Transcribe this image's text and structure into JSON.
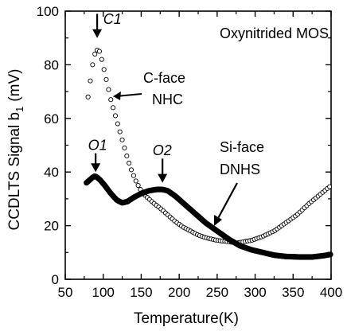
{
  "chart_data": {
    "type": "scatter",
    "title": "Oxynitrided MOS",
    "xlabel": "Temperature(K)",
    "ylabel": "CCDLTS Signal b",
    "ylabel_sub": "1",
    "ylabel_unit": "(mV)",
    "xlim": [
      50,
      400
    ],
    "ylim": [
      0,
      100
    ],
    "xticks": [
      50,
      100,
      150,
      200,
      250,
      300,
      350,
      400
    ],
    "yticks": [
      0,
      20,
      40,
      60,
      80,
      100
    ],
    "grid": false,
    "series": [
      {
        "name": "C-face NHC",
        "marker": "open-circle",
        "x_start": 80,
        "x_end": 400,
        "x_step": 3,
        "points": [
          [
            80,
            68
          ],
          [
            83,
            74
          ],
          [
            86,
            80
          ],
          [
            89,
            84
          ],
          [
            92,
            85.5
          ],
          [
            95,
            85
          ],
          [
            98,
            82
          ],
          [
            102,
            77
          ],
          [
            106,
            72
          ],
          [
            110,
            67
          ],
          [
            115,
            62
          ],
          [
            120,
            57
          ],
          [
            126,
            51
          ],
          [
            132,
            45
          ],
          [
            138,
            40
          ],
          [
            144,
            36
          ],
          [
            150,
            33
          ],
          [
            156,
            31
          ],
          [
            162,
            29.5
          ],
          [
            168,
            28
          ],
          [
            175,
            26.5
          ],
          [
            185,
            24
          ],
          [
            195,
            21.5
          ],
          [
            205,
            19.5
          ],
          [
            215,
            18
          ],
          [
            225,
            16.5
          ],
          [
            235,
            15.5
          ],
          [
            250,
            14.5
          ],
          [
            265,
            14
          ],
          [
            275,
            13.5
          ],
          [
            285,
            14
          ],
          [
            295,
            14.5
          ],
          [
            310,
            16
          ],
          [
            325,
            18
          ],
          [
            340,
            21
          ],
          [
            355,
            24
          ],
          [
            370,
            28
          ],
          [
            385,
            31.5
          ],
          [
            400,
            35
          ]
        ],
        "label_name": "C-face",
        "label_sub": "NHC"
      },
      {
        "name": "Si-face DNHS",
        "marker": "filled-circle",
        "x_start": 78,
        "x_end": 400,
        "x_step": 1.5,
        "points": [
          [
            78,
            36
          ],
          [
            82,
            37
          ],
          [
            86,
            38
          ],
          [
            89,
            38.5
          ],
          [
            92,
            38
          ],
          [
            96,
            37
          ],
          [
            102,
            35
          ],
          [
            110,
            32
          ],
          [
            118,
            29.5
          ],
          [
            125,
            28.5
          ],
          [
            132,
            29
          ],
          [
            140,
            30.5
          ],
          [
            150,
            32
          ],
          [
            160,
            33
          ],
          [
            170,
            33.5
          ],
          [
            178,
            33.5
          ],
          [
            185,
            33
          ],
          [
            195,
            31
          ],
          [
            205,
            28.5
          ],
          [
            215,
            26
          ],
          [
            225,
            23.5
          ],
          [
            235,
            21
          ],
          [
            250,
            18
          ],
          [
            265,
            15
          ],
          [
            280,
            12.5
          ],
          [
            295,
            11
          ],
          [
            310,
            10
          ],
          [
            325,
            9
          ],
          [
            340,
            8.5
          ],
          [
            360,
            8.3
          ],
          [
            375,
            8.3
          ],
          [
            390,
            8.8
          ],
          [
            400,
            9.3
          ]
        ],
        "label_name": "Si-face",
        "label_sub": "DNHS"
      }
    ],
    "annotations": [
      {
        "text": "C1",
        "italic": true,
        "arrow_x": 92,
        "arrow_from_y": 99,
        "arrow_to_y": 90,
        "text_x": 100,
        "text_y": 97
      },
      {
        "text": "O1",
        "italic": true,
        "arrow_x": 90,
        "arrow_from_y": 47,
        "arrow_to_y": 40,
        "text_x": 80,
        "text_y": 50
      },
      {
        "text": "O2",
        "italic": true,
        "arrow_x": 178,
        "arrow_from_y": 45,
        "arrow_to_y": 36,
        "text_x": 165,
        "text_y": 48
      }
    ]
  }
}
